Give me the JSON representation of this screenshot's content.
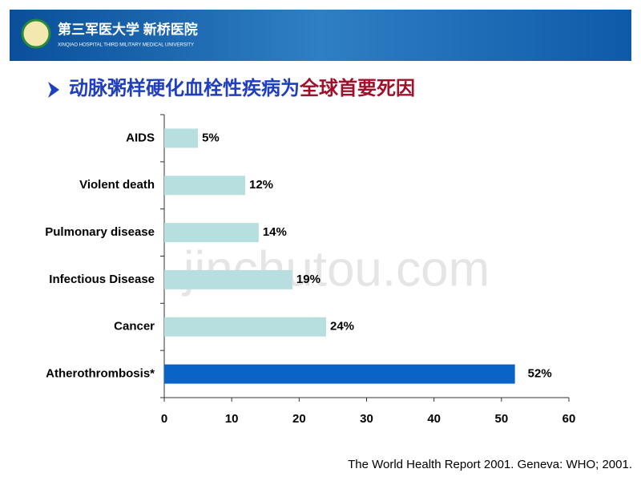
{
  "header": {
    "name": "第三军医大学 新桥医院",
    "subname": "XINQIAO HOSPITAL THIRD MILITARY MEDICAL UNIVERSITY"
  },
  "chart_data": {
    "type": "bar",
    "orientation": "horizontal",
    "title_parts": [
      "动脉粥样硬化血栓性疾病为",
      "全球首要死因"
    ],
    "title_colors": [
      "#1f3fbf",
      "#a0102a"
    ],
    "categories": [
      "AIDS",
      "Violent death",
      "Pulmonary disease",
      "Infectious Disease",
      "Cancer",
      "Atherothrombosis*"
    ],
    "values": [
      5,
      12,
      14,
      19,
      24,
      52
    ],
    "value_labels": [
      "5%",
      "12%",
      "14%",
      "19%",
      "24%",
      "52%"
    ],
    "colors": [
      "#b7dfe0",
      "#b7dfe0",
      "#b7dfe0",
      "#b7dfe0",
      "#b7dfe0",
      "#0a64c8"
    ],
    "xlim": [
      0,
      60
    ],
    "xticks": [
      0,
      10,
      20,
      30,
      40,
      50,
      60
    ]
  },
  "source": "The World Health Report 2001. Geneva: WHO; 2001.",
  "watermark": "jinchutou.com"
}
